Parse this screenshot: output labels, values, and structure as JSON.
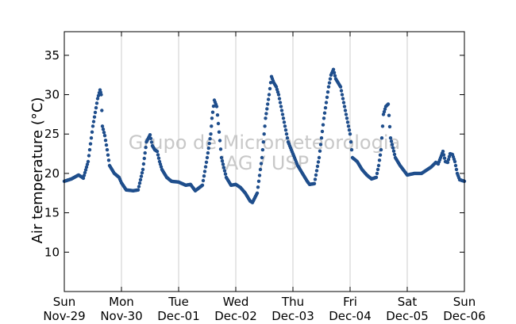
{
  "chart_data": {
    "type": "scatter",
    "title": "",
    "xlabel": "",
    "ylabel": "Air temperature (°C)",
    "ylim": [
      5,
      38
    ],
    "xlim": [
      "2015-11-29T00:00",
      "2015-12-06T00:00"
    ],
    "yticks": [
      10,
      15,
      20,
      25,
      30,
      35
    ],
    "xticks": [
      {
        "date": "2015-11-29T00:00",
        "day": "Sun",
        "label": "Nov-29"
      },
      {
        "date": "2015-11-30T00:00",
        "day": "Mon",
        "label": "Nov-30"
      },
      {
        "date": "2015-12-01T00:00",
        "day": "Tue",
        "label": "Dec-01"
      },
      {
        "date": "2015-12-02T00:00",
        "day": "Wed",
        "label": "Dec-02"
      },
      {
        "date": "2015-12-03T00:00",
        "day": "Thu",
        "label": "Dec-03"
      },
      {
        "date": "2015-12-04T00:00",
        "day": "Fri",
        "label": "Dec-04"
      },
      {
        "date": "2015-12-05T00:00",
        "day": "Sat",
        "label": "Dec-05"
      },
      {
        "date": "2015-12-06T00:00",
        "day": "Sun",
        "label": "Dec-06"
      }
    ],
    "grid": "vertical",
    "marker_color": "#1f4e8c",
    "watermark": [
      "Grupo de Micrometeorologia",
      "IAG / USP"
    ],
    "series": [
      {
        "x": [
          "2015-11-29T00:00",
          "2015-11-29T03:00",
          "2015-11-29T06:00",
          "2015-11-29T08:00",
          "2015-11-29T10:00",
          "2015-11-29T12:00",
          "2015-11-29T14:00",
          "2015-11-29T15:00",
          "2015-11-29T15:30",
          "2015-11-29T16:00",
          "2015-11-29T17:00",
          "2015-11-29T18:00",
          "2015-11-29T19:00",
          "2015-11-29T21:00",
          "2015-11-29T23:00",
          "2015-11-30T00:00",
          "2015-11-30T02:00",
          "2015-11-30T05:00",
          "2015-11-30T07:00",
          "2015-11-30T09:00",
          "2015-11-30T10:30",
          "2015-11-30T12:00",
          "2015-11-30T13:00",
          "2015-11-30T14:00",
          "2015-11-30T15:00",
          "2015-11-30T16:00",
          "2015-11-30T17:00",
          "2015-11-30T19:00",
          "2015-11-30T21:00",
          "2015-12-01T00:00",
          "2015-12-01T03:00",
          "2015-12-01T05:00",
          "2015-12-01T07:00",
          "2015-12-01T10:00",
          "2015-12-01T12:00",
          "2015-12-01T13:30",
          "2015-12-01T14:00",
          "2015-12-01T15:00",
          "2015-12-01T16:00",
          "2015-12-01T18:00",
          "2015-12-01T20:00",
          "2015-12-01T22:00",
          "2015-12-02T00:00",
          "2015-12-02T02:00",
          "2015-12-02T04:00",
          "2015-12-02T05:00",
          "2015-12-02T06:00",
          "2015-12-02T07:00",
          "2015-12-02T09:00",
          "2015-12-02T11:00",
          "2015-12-02T12:30",
          "2015-12-02T14:00",
          "2015-12-02T15:00",
          "2015-12-02T16:00",
          "2015-12-02T17:00",
          "2015-12-02T18:00",
          "2015-12-02T20:00",
          "2015-12-02T22:00",
          "2015-12-03T00:00",
          "2015-12-03T02:00",
          "2015-12-03T04:00",
          "2015-12-03T06:00",
          "2015-12-03T07:00",
          "2015-12-03T09:00",
          "2015-12-03T11:00",
          "2015-12-03T13:00",
          "2015-12-03T14:00",
          "2015-12-03T15:00",
          "2015-12-03T16:00",
          "2015-12-03T17:00",
          "2015-12-03T18:00",
          "2015-12-03T20:00",
          "2015-12-03T22:00",
          "2015-12-04T00:00",
          "2015-12-04T01:00",
          "2015-12-04T03:00",
          "2015-12-04T05:00",
          "2015-12-04T07:00",
          "2015-12-04T09:00",
          "2015-12-04T11:00",
          "2015-12-04T12:00",
          "2015-12-04T13:00",
          "2015-12-04T14:00",
          "2015-12-04T15:00",
          "2015-12-04T16:00",
          "2015-12-04T17:00",
          "2015-12-04T19:00",
          "2015-12-04T21:00",
          "2015-12-05T00:00",
          "2015-12-05T03:00",
          "2015-12-05T06:00",
          "2015-12-05T08:00",
          "2015-12-05T10:00",
          "2015-12-05T12:00",
          "2015-12-05T13:00",
          "2015-12-05T14:00",
          "2015-12-05T15:00",
          "2015-12-05T16:00",
          "2015-12-05T17:00",
          "2015-12-05T18:00",
          "2015-12-05T19:00",
          "2015-12-05T20:00",
          "2015-12-05T21:00",
          "2015-12-05T22:00",
          "2015-12-06T00:00"
        ],
        "y": [
          19.0,
          19.3,
          19.8,
          19.4,
          21.5,
          26.0,
          29.5,
          30.6,
          30.0,
          26.0,
          24.8,
          23.0,
          21.0,
          20.0,
          19.5,
          18.8,
          17.9,
          17.8,
          17.9,
          20.5,
          24.0,
          24.9,
          23.5,
          23.0,
          22.8,
          21.5,
          20.5,
          19.5,
          19.0,
          18.9,
          18.5,
          18.6,
          17.8,
          18.5,
          22.0,
          25.0,
          27.0,
          29.3,
          28.5,
          22.0,
          19.5,
          18.5,
          18.6,
          18.2,
          17.5,
          17.0,
          16.5,
          16.3,
          17.5,
          22.0,
          27.0,
          30.0,
          32.3,
          31.5,
          31.0,
          30.0,
          27.0,
          24.0,
          22.5,
          21.0,
          20.0,
          19.0,
          18.6,
          18.7,
          22.0,
          27.0,
          29.0,
          31.0,
          32.5,
          33.2,
          32.0,
          31.0,
          28.0,
          25.0,
          22.0,
          21.5,
          20.5,
          19.8,
          19.3,
          19.5,
          21.0,
          23.0,
          27.5,
          28.5,
          28.8,
          24.5,
          22.0,
          21.0,
          19.8,
          20.0,
          20.0,
          20.4,
          20.8,
          21.4,
          21.2,
          22.0,
          22.8,
          21.5,
          21.4,
          22.5,
          22.4,
          21.5,
          20.0,
          19.2,
          19.0
        ]
      }
    ]
  }
}
